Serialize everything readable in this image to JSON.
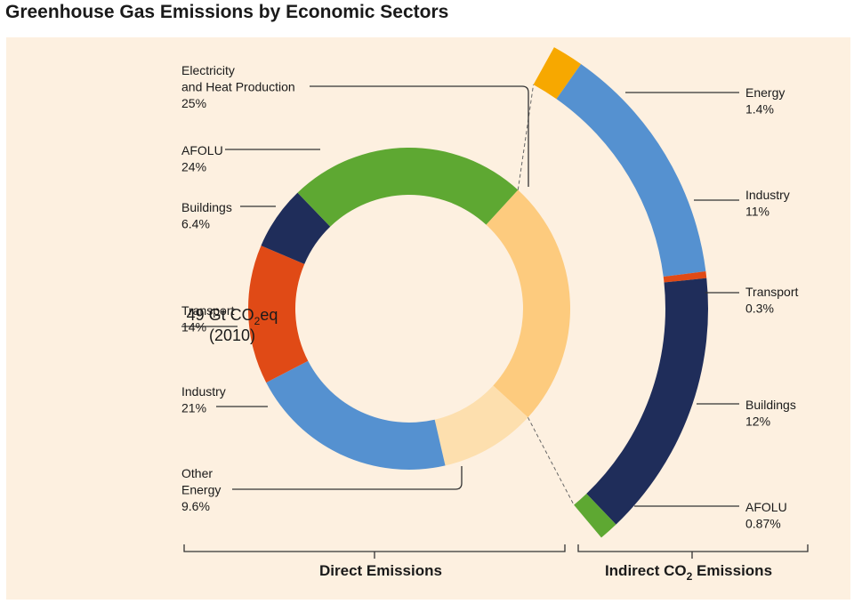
{
  "title": "Greenhouse Gas Emissions by Economic Sectors",
  "center_label": {
    "line1_prefix": "49 Gt CO",
    "line1_sub": "2",
    "line1_suffix": "eq",
    "line2": "(2010)"
  },
  "footer": {
    "direct": "Direct Emissions",
    "indirect_prefix": "Indirect CO",
    "indirect_sub": "2",
    "indirect_suffix": " Emissions"
  },
  "chart_data": [
    {
      "type": "pie",
      "subtype": "donut",
      "group": "Direct Emissions",
      "total": "49 Gt CO2eq (2010)",
      "slices": [
        {
          "name": "Electricity and Heat Production",
          "label_lines": [
            "Electricity",
            "and Heat Production"
          ],
          "value": 25,
          "value_label": "25%",
          "color": "#fdcb7e"
        },
        {
          "name": "Other Energy",
          "label_lines": [
            "Other",
            "Energy"
          ],
          "value": 9.6,
          "value_label": "9.6%",
          "color": "#fddfae"
        },
        {
          "name": "Industry",
          "label_lines": [
            "Industry"
          ],
          "value": 21,
          "value_label": "21%",
          "color": "#5591d0"
        },
        {
          "name": "Transport",
          "label_lines": [
            "Transport"
          ],
          "value": 14,
          "value_label": "14%",
          "color": "#e04a16"
        },
        {
          "name": "Buildings",
          "label_lines": [
            "Buildings"
          ],
          "value": 6.4,
          "value_label": "6.4%",
          "color": "#1f2d5a"
        },
        {
          "name": "AFOLU",
          "label_lines": [
            "AFOLU"
          ],
          "value": 24,
          "value_label": "24%",
          "color": "#5ea832"
        }
      ]
    },
    {
      "type": "bar",
      "subtype": "stacked-arc",
      "group": "Indirect CO2 Emissions",
      "breakdown_of": "Electricity and Heat Production",
      "segments": [
        {
          "name": "Energy",
          "value": 1.4,
          "value_label": "1.4%",
          "color": "#f7a800"
        },
        {
          "name": "Industry",
          "value": 11,
          "value_label": "11%",
          "color": "#5591d0"
        },
        {
          "name": "Transport",
          "value": 0.3,
          "value_label": "0.3%",
          "color": "#e04a16"
        },
        {
          "name": "Buildings",
          "value": 12,
          "value_label": "12%",
          "color": "#1f2d5a"
        },
        {
          "name": "AFOLU",
          "value": 0.87,
          "value_label": "0.87%",
          "color": "#5ea832"
        }
      ]
    }
  ]
}
